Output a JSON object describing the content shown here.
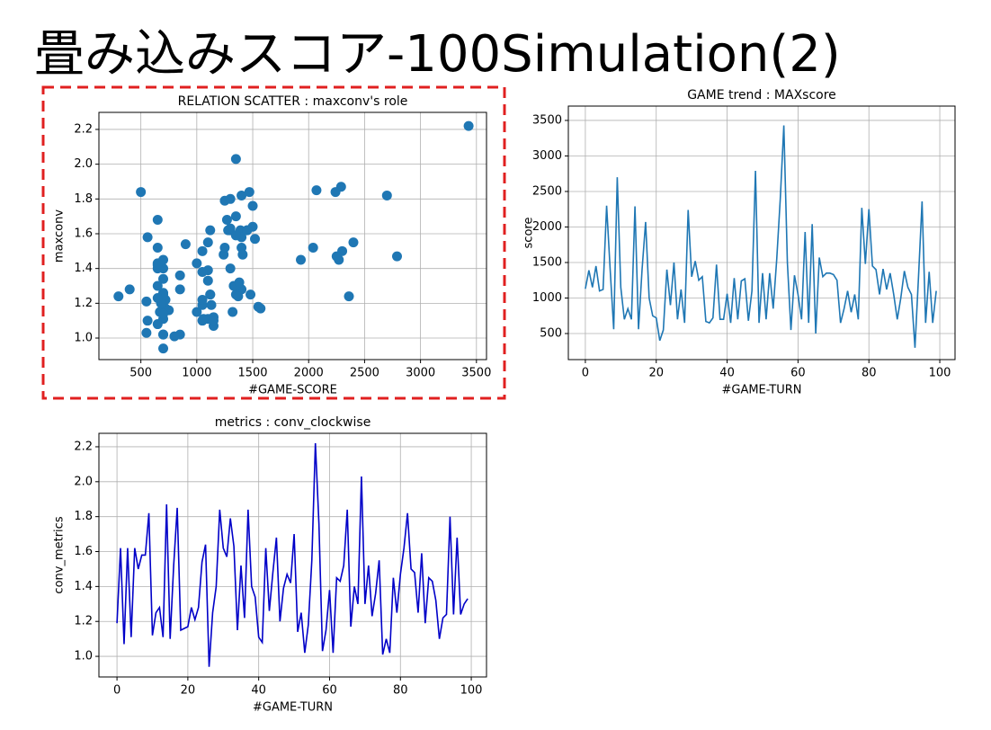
{
  "title": "畳み込みスコア-100Simulation(2)",
  "chart_data": [
    {
      "type": "scatter",
      "title": "RELATION SCATTER : maxconv's role",
      "xlabel": "#GAME-SCORE",
      "ylabel": "maxconv",
      "color": "#1f77b4",
      "grid": true,
      "x": [
        1130,
        1390,
        1150,
        1450,
        1100,
        1120,
        2300,
        1400,
        560,
        2700,
        1150,
        700,
        850,
        700,
        2290,
        560,
        1400,
        2070,
        1000,
        750,
        720,
        400,
        550,
        1400,
        900,
        1500,
        700,
        1120,
        650,
        2240,
        1300,
        1520,
        1250,
        1300,
        670,
        650,
        720,
        1470,
        700,
        700,
        1060,
        650,
        1280,
        700,
        1240,
        1270,
        680,
        1100,
        2790,
        650,
        1350,
        700,
        1350,
        850,
        1550,
        2400,
        3430,
        1500,
        550,
        1320,
        1050,
        700,
        1930,
        650,
        2040,
        500,
        1570,
        1300,
        1350,
        1350,
        1330,
        1250,
        650,
        850,
        1100,
        800,
        1050,
        700,
        2270,
        1480,
        2250,
        1450,
        1400,
        1050,
        1410,
        1120,
        1350,
        1050,
        700,
        1000,
        1380,
        1150,
        1050,
        300,
        1300,
        2360,
        650,
        1370,
        650,
        1100
      ],
      "values": [
        1.19,
        1.62,
        1.07,
        1.62,
        1.11,
        1.62,
        1.5,
        1.58,
        1.58,
        1.82,
        1.12,
        1.25,
        1.28,
        1.11,
        1.87,
        1.1,
        1.52,
        1.85,
        1.15,
        1.16,
        1.17,
        1.28,
        1.21,
        1.28,
        1.54,
        1.64,
        0.94,
        1.25,
        1.4,
        1.84,
        1.62,
        1.57,
        1.79,
        1.63,
        1.15,
        1.52,
        1.22,
        1.84,
        1.4,
        1.34,
        1.11,
        1.08,
        1.62,
        1.26,
        1.48,
        1.68,
        1.2,
        1.39,
        1.47,
        1.42,
        1.7,
        1.14,
        1.25,
        1.02,
        1.18,
        1.55,
        2.22,
        1.76,
        1.03,
        1.15,
        1.38,
        1.02,
        1.45,
        1.43,
        1.52,
        1.84,
        1.17,
        1.4,
        1.3,
        2.03,
        1.3,
        1.52,
        1.23,
        1.36,
        1.55,
        1.01,
        1.1,
        1.02,
        1.45,
        1.25,
        1.47,
        1.62,
        1.82,
        1.5,
        1.48,
        1.25,
        1.59,
        1.19,
        1.45,
        1.43,
        1.32,
        1.1,
        1.22,
        1.24,
        1.8,
        1.24,
        1.68,
        1.24,
        1.3,
        1.33
      ],
      "xlim": [
        125,
        3590
      ],
      "xticks": [
        500,
        1000,
        1500,
        2000,
        2500,
        3000,
        3500
      ],
      "ylim": [
        0.876,
        2.298
      ],
      "yticks": [
        {
          "value": 1,
          "label": "1.0"
        },
        1.2,
        1.4,
        1.6,
        1.8,
        {
          "value": 2,
          "label": "2.0"
        },
        2.2
      ]
    },
    {
      "type": "line",
      "title": "GAME trend : MAXscore",
      "xlabel": "#GAME-TURN",
      "ylabel": "score",
      "color": "#1f77b4",
      "grid": true,
      "x": [
        0,
        1,
        2,
        3,
        4,
        5,
        6,
        7,
        8,
        9,
        10,
        11,
        12,
        13,
        14,
        15,
        16,
        17,
        18,
        19,
        20,
        21,
        22,
        23,
        24,
        25,
        26,
        27,
        28,
        29,
        30,
        31,
        32,
        33,
        34,
        35,
        36,
        37,
        38,
        39,
        40,
        41,
        42,
        43,
        44,
        45,
        46,
        47,
        48,
        49,
        50,
        51,
        52,
        53,
        54,
        55,
        56,
        57,
        58,
        59,
        60,
        61,
        62,
        63,
        64,
        65,
        66,
        67,
        68,
        69,
        70,
        71,
        72,
        73,
        74,
        75,
        76,
        77,
        78,
        79,
        80,
        81,
        82,
        83,
        84,
        85,
        86,
        87,
        88,
        89,
        90,
        91,
        92,
        93,
        94,
        95,
        96,
        97,
        98,
        99
      ],
      "values": [
        1130,
        1390,
        1150,
        1450,
        1100,
        1120,
        2300,
        1400,
        560,
        2700,
        1150,
        700,
        850,
        700,
        2290,
        560,
        1400,
        2070,
        1000,
        750,
        720,
        400,
        550,
        1400,
        900,
        1500,
        700,
        1120,
        650,
        2240,
        1300,
        1520,
        1250,
        1300,
        670,
        650,
        720,
        1470,
        700,
        700,
        1060,
        650,
        1280,
        700,
        1240,
        1270,
        680,
        1100,
        2790,
        650,
        1350,
        700,
        1350,
        850,
        1550,
        2400,
        3430,
        1500,
        550,
        1320,
        1050,
        700,
        1930,
        650,
        2040,
        500,
        1570,
        1300,
        1350,
        1350,
        1330,
        1250,
        650,
        850,
        1100,
        800,
        1050,
        700,
        2270,
        1480,
        2250,
        1450,
        1400,
        1050,
        1410,
        1120,
        1350,
        1050,
        700,
        1000,
        1380,
        1150,
        1050,
        300,
        1300,
        2360,
        650,
        1370,
        650,
        1100
      ],
      "xlim": [
        -4.8,
        104.3
      ],
      "xticks": [
        0,
        20,
        40,
        60,
        80,
        100
      ],
      "ylim": [
        133,
        3702
      ],
      "yticks": [
        500,
        1000,
        1500,
        2000,
        2500,
        3000,
        3500
      ]
    },
    {
      "type": "line",
      "title": "metrics : conv_clockwise",
      "xlabel": "#GAME-TURN",
      "ylabel": "conv_metrics",
      "color": "#0000c8",
      "grid": true,
      "x": [
        0,
        1,
        2,
        3,
        4,
        5,
        6,
        7,
        8,
        9,
        10,
        11,
        12,
        13,
        14,
        15,
        16,
        17,
        18,
        19,
        20,
        21,
        22,
        23,
        24,
        25,
        26,
        27,
        28,
        29,
        30,
        31,
        32,
        33,
        34,
        35,
        36,
        37,
        38,
        39,
        40,
        41,
        42,
        43,
        44,
        45,
        46,
        47,
        48,
        49,
        50,
        51,
        52,
        53,
        54,
        55,
        56,
        57,
        58,
        59,
        60,
        61,
        62,
        63,
        64,
        65,
        66,
        67,
        68,
        69,
        70,
        71,
        72,
        73,
        74,
        75,
        76,
        77,
        78,
        79,
        80,
        81,
        82,
        83,
        84,
        85,
        86,
        87,
        88,
        89,
        90,
        91,
        92,
        93,
        94,
        95,
        96,
        97,
        98,
        99
      ],
      "values": [
        1.19,
        1.62,
        1.07,
        1.62,
        1.11,
        1.62,
        1.5,
        1.58,
        1.58,
        1.82,
        1.12,
        1.25,
        1.28,
        1.11,
        1.87,
        1.1,
        1.52,
        1.85,
        1.15,
        1.16,
        1.17,
        1.28,
        1.21,
        1.28,
        1.54,
        1.64,
        0.94,
        1.25,
        1.4,
        1.84,
        1.62,
        1.57,
        1.79,
        1.63,
        1.15,
        1.52,
        1.22,
        1.84,
        1.4,
        1.34,
        1.11,
        1.08,
        1.62,
        1.26,
        1.48,
        1.68,
        1.2,
        1.39,
        1.47,
        1.42,
        1.7,
        1.14,
        1.25,
        1.02,
        1.18,
        1.55,
        2.22,
        1.76,
        1.03,
        1.15,
        1.38,
        1.02,
        1.45,
        1.43,
        1.52,
        1.84,
        1.17,
        1.4,
        1.3,
        2.03,
        1.3,
        1.52,
        1.23,
        1.36,
        1.55,
        1.01,
        1.1,
        1.02,
        1.45,
        1.25,
        1.47,
        1.62,
        1.82,
        1.5,
        1.48,
        1.25,
        1.59,
        1.19,
        1.45,
        1.43,
        1.32,
        1.1,
        1.22,
        1.24,
        1.8,
        1.24,
        1.68,
        1.24,
        1.3,
        1.33
      ],
      "xlim": [
        -5.1,
        104.3
      ],
      "xticks": [
        0,
        20,
        40,
        60,
        80,
        100
      ],
      "ylim": [
        0.882,
        2.277
      ],
      "yticks": [
        {
          "value": 1,
          "label": "1.0"
        },
        1.2,
        1.4,
        1.6,
        1.8,
        {
          "value": 2,
          "label": "2.0"
        },
        2.2
      ]
    }
  ]
}
